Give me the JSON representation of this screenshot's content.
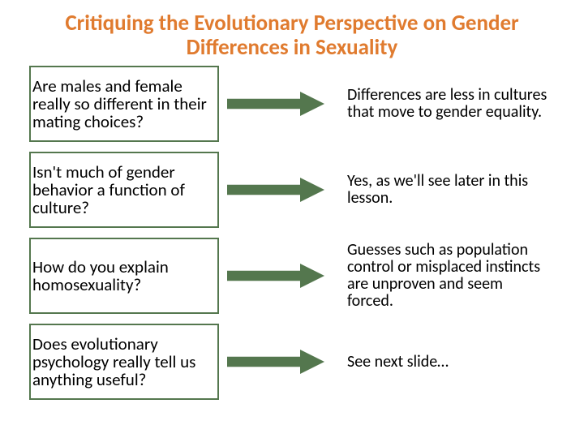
{
  "title": {
    "text": "Critiquing the Evolutionary Perspective on Gender Differences in Sexuality",
    "color": "#e07b2f",
    "fontsize": 27
  },
  "layout": {
    "question_box_border_color": "#54774e",
    "question_box_border_width": 2,
    "question_fontsize": 21,
    "question_color": "#000000",
    "answer_fontsize": 20,
    "answer_color": "#000000",
    "arrow_fill": "#54774e",
    "arrow_width": 120,
    "arrow_height": 30,
    "row_height_approx": 100
  },
  "rows": [
    {
      "question": "Are males and female really so different in their mating choices?",
      "answer": "Differences are less in cultures that move to gender equality."
    },
    {
      "question": "Isn't much of gender behavior a function of culture?",
      "answer": "Yes, as we'll see later in this lesson."
    },
    {
      "question": "How do you explain homosexuality?",
      "answer": "Guesses such as population control or misplaced instincts are unproven and seem forced."
    },
    {
      "question": "Does evolutionary psychology really tell us anything useful?",
      "answer": "See next slide…"
    }
  ]
}
